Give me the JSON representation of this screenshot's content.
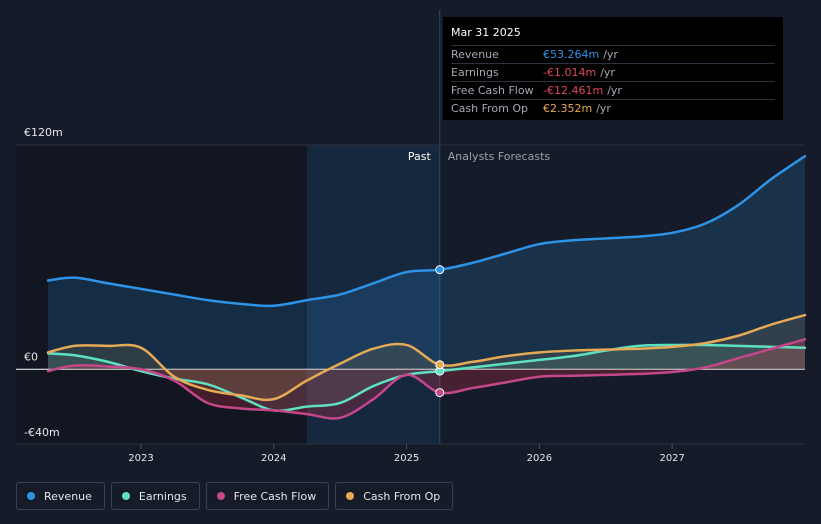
{
  "chart_data": {
    "type": "line",
    "y_unit": "€m",
    "ylim": [
      -40,
      120
    ],
    "y_axis_labels": [
      {
        "label": "€120m",
        "value": 120
      },
      {
        "label": "€0",
        "value": 0
      },
      {
        "label": "-€40m",
        "value": -40
      }
    ],
    "xlim": [
      2022.3,
      2028.0
    ],
    "x_ticks": [
      {
        "label": "2023",
        "value": 2023
      },
      {
        "label": "2024",
        "value": 2024
      },
      {
        "label": "2025",
        "value": 2025
      },
      {
        "label": "2026",
        "value": 2026
      },
      {
        "label": "2027",
        "value": 2027
      }
    ],
    "past_label": "Past",
    "forecast_label": "Analysts Forecasts",
    "past_shade_start": 2024.25,
    "divider_x": 2025.25,
    "series": [
      {
        "name": "Revenue",
        "color": "#2e93e6",
        "points": [
          [
            2022.3,
            47.5
          ],
          [
            2022.5,
            49
          ],
          [
            2022.75,
            46
          ],
          [
            2023.0,
            43
          ],
          [
            2023.25,
            40
          ],
          [
            2023.5,
            37
          ],
          [
            2023.75,
            35
          ],
          [
            2024.0,
            34
          ],
          [
            2024.25,
            37
          ],
          [
            2024.5,
            40
          ],
          [
            2024.75,
            46
          ],
          [
            2025.0,
            52
          ],
          [
            2025.25,
            53.3
          ],
          [
            2025.5,
            57
          ],
          [
            2025.75,
            62
          ],
          [
            2026.0,
            67
          ],
          [
            2026.25,
            69
          ],
          [
            2026.5,
            70
          ],
          [
            2026.75,
            71
          ],
          [
            2027.0,
            73
          ],
          [
            2027.25,
            78
          ],
          [
            2027.5,
            88
          ],
          [
            2027.75,
            102
          ],
          [
            2028.0,
            114
          ]
        ]
      },
      {
        "name": "Earnings",
        "color": "#5fe0c1",
        "points": [
          [
            2022.3,
            8.5
          ],
          [
            2022.5,
            7.5
          ],
          [
            2022.75,
            4
          ],
          [
            2023.0,
            -1
          ],
          [
            2023.25,
            -5
          ],
          [
            2023.5,
            -8
          ],
          [
            2023.75,
            -15
          ],
          [
            2024.0,
            -22
          ],
          [
            2024.25,
            -20
          ],
          [
            2024.5,
            -18
          ],
          [
            2024.75,
            -9
          ],
          [
            2025.0,
            -3
          ],
          [
            2025.25,
            -1.0
          ],
          [
            2025.5,
            1
          ],
          [
            2025.75,
            3
          ],
          [
            2026.0,
            5
          ],
          [
            2026.25,
            7
          ],
          [
            2026.5,
            10
          ],
          [
            2026.75,
            12.5
          ],
          [
            2027.0,
            13
          ],
          [
            2027.25,
            13
          ],
          [
            2027.5,
            12.5
          ],
          [
            2027.75,
            12
          ],
          [
            2028.0,
            11.5
          ]
        ]
      },
      {
        "name": "Free Cash Flow",
        "color": "#c4478a",
        "points": [
          [
            2022.3,
            -1
          ],
          [
            2022.5,
            2
          ],
          [
            2022.75,
            1.5
          ],
          [
            2023.0,
            0
          ],
          [
            2023.25,
            -6
          ],
          [
            2023.5,
            -18
          ],
          [
            2023.75,
            -21
          ],
          [
            2024.0,
            -22
          ],
          [
            2024.25,
            -24
          ],
          [
            2024.5,
            -26
          ],
          [
            2024.75,
            -16
          ],
          [
            2025.0,
            -3
          ],
          [
            2025.25,
            -12.5
          ],
          [
            2025.5,
            -10
          ],
          [
            2025.75,
            -7
          ],
          [
            2026.0,
            -4
          ],
          [
            2026.25,
            -3.5
          ],
          [
            2026.5,
            -3
          ],
          [
            2026.75,
            -2.5
          ],
          [
            2027.0,
            -1.5
          ],
          [
            2027.25,
            1
          ],
          [
            2027.5,
            6
          ],
          [
            2027.75,
            11
          ],
          [
            2028.0,
            16
          ]
        ]
      },
      {
        "name": "Cash From Op",
        "color": "#e6a955",
        "points": [
          [
            2022.3,
            9
          ],
          [
            2022.5,
            12.5
          ],
          [
            2022.75,
            12.5
          ],
          [
            2023.0,
            11.5
          ],
          [
            2023.25,
            -4
          ],
          [
            2023.5,
            -11
          ],
          [
            2023.75,
            -14
          ],
          [
            2024.0,
            -16
          ],
          [
            2024.25,
            -6
          ],
          [
            2024.5,
            3
          ],
          [
            2024.75,
            11
          ],
          [
            2025.0,
            13
          ],
          [
            2025.25,
            2.4
          ],
          [
            2025.5,
            4
          ],
          [
            2025.75,
            7
          ],
          [
            2026.0,
            9
          ],
          [
            2026.25,
            10
          ],
          [
            2026.5,
            10.5
          ],
          [
            2026.75,
            11
          ],
          [
            2027.0,
            12
          ],
          [
            2027.25,
            14
          ],
          [
            2027.5,
            18
          ],
          [
            2027.75,
            24
          ],
          [
            2028.0,
            29
          ]
        ]
      }
    ],
    "tooltip": {
      "date": "Mar 31 2025",
      "rows": [
        {
          "label": "Revenue",
          "value": "€53.264m",
          "unit": "/yr",
          "color": "#2e93e6"
        },
        {
          "label": "Earnings",
          "value": "-€1.014m",
          "unit": "/yr",
          "color": "#e0495b"
        },
        {
          "label": "Free Cash Flow",
          "value": "-€12.461m",
          "unit": "/yr",
          "color": "#e0495b"
        },
        {
          "label": "Cash From Op",
          "value": "€2.352m",
          "unit": "/yr",
          "color": "#e6a955"
        }
      ]
    }
  },
  "legend": [
    {
      "label": "Revenue",
      "color": "#2e93e6"
    },
    {
      "label": "Earnings",
      "color": "#5fe0c1"
    },
    {
      "label": "Free Cash Flow",
      "color": "#c4478a"
    },
    {
      "label": "Cash From Op",
      "color": "#e6a955"
    }
  ]
}
